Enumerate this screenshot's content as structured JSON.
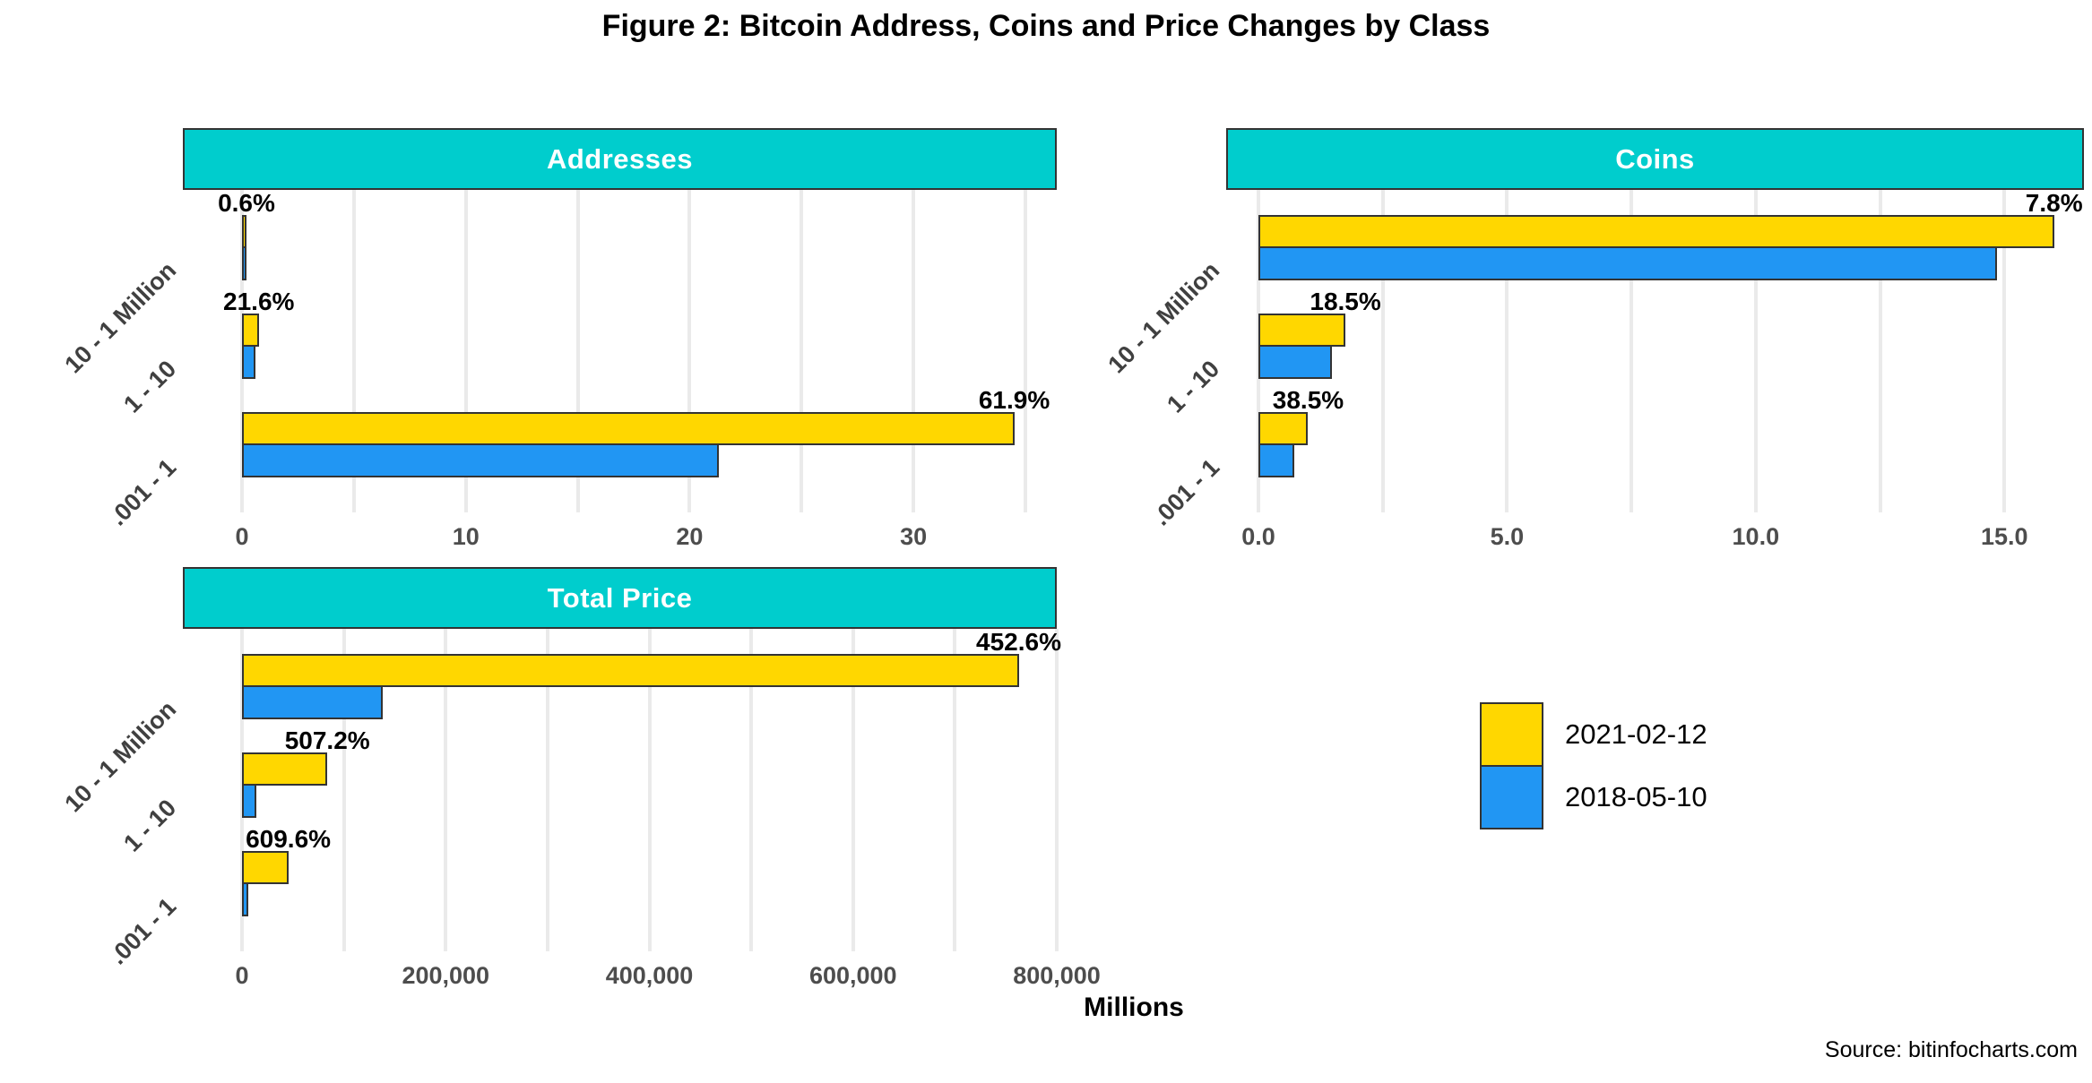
{
  "title": "Figure 2: Bitcoin Address, Coins and Price Changes by Class",
  "source": "Source: bitinfocharts.com",
  "colors": {
    "panel_header": "#00CDCD",
    "series_2021": "#FFD700",
    "series_2018": "#2196F3",
    "gridline": "#EAEAEA",
    "tick_text": "#4d4d4d"
  },
  "legend": {
    "items": [
      {
        "label": "2021-02-12",
        "color": "#FFD700"
      },
      {
        "label": "2018-05-10",
        "color": "#2196F3"
      }
    ]
  },
  "chart_data": [
    {
      "type": "bar",
      "orientation": "horizontal",
      "title": "Addresses",
      "categories": [
        "10 - 1 Million",
        "1 - 10",
        ".001 - 1"
      ],
      "series": [
        {
          "name": "2021-02-12",
          "color": "#FFD700",
          "values": [
            0.2,
            0.75,
            34.5
          ]
        },
        {
          "name": "2018-05-10",
          "color": "#2196F3",
          "values": [
            0.2,
            0.62,
            21.3
          ]
        }
      ],
      "pct_change": [
        "0.6%",
        "21.6%",
        "61.9%"
      ],
      "ticks": [
        {
          "value": 0,
          "label": "0"
        },
        {
          "value": 10,
          "label": "10"
        },
        {
          "value": 20,
          "label": "20"
        },
        {
          "value": 30,
          "label": "30"
        }
      ],
      "grid_step": 5,
      "xmax": 36.4,
      "xlabel": ""
    },
    {
      "type": "bar",
      "orientation": "horizontal",
      "title": "Coins",
      "categories": [
        "10 - 1 Million",
        "1 - 10",
        ".001 - 1"
      ],
      "series": [
        {
          "name": "2021-02-12",
          "color": "#FFD700",
          "values": [
            16.0,
            1.75,
            1.0
          ]
        },
        {
          "name": "2018-05-10",
          "color": "#2196F3",
          "values": [
            14.85,
            1.48,
            0.72
          ]
        }
      ],
      "pct_change": [
        "7.8%",
        "18.5%",
        "38.5%"
      ],
      "ticks": [
        {
          "value": 0,
          "label": "0.0"
        },
        {
          "value": 5,
          "label": "5.0"
        },
        {
          "value": 10,
          "label": "10.0"
        },
        {
          "value": 15,
          "label": "15.0"
        }
      ],
      "grid_step": 2.5,
      "xmax": 16.6,
      "xlabel": ""
    },
    {
      "type": "bar",
      "orientation": "horizontal",
      "title": "Total Price",
      "categories": [
        "10 - 1 Million",
        "1 - 10",
        ".001 - 1"
      ],
      "series": [
        {
          "name": "2021-02-12",
          "color": "#FFD700",
          "values": [
            762600,
            83800,
            45400
          ]
        },
        {
          "name": "2018-05-10",
          "color": "#2196F3",
          "values": [
            138000,
            13800,
            6400
          ]
        }
      ],
      "pct_change": [
        "452.6%",
        "507.2%",
        "609.6%"
      ],
      "ticks": [
        {
          "value": 0,
          "label": "0"
        },
        {
          "value": 200000,
          "label": "200,000"
        },
        {
          "value": 400000,
          "label": "400,000"
        },
        {
          "value": 600000,
          "label": "600,000"
        },
        {
          "value": 800000,
          "label": "800,000"
        }
      ],
      "grid_step": 100000,
      "xmax": 800000,
      "xlabel": "Millions"
    }
  ]
}
